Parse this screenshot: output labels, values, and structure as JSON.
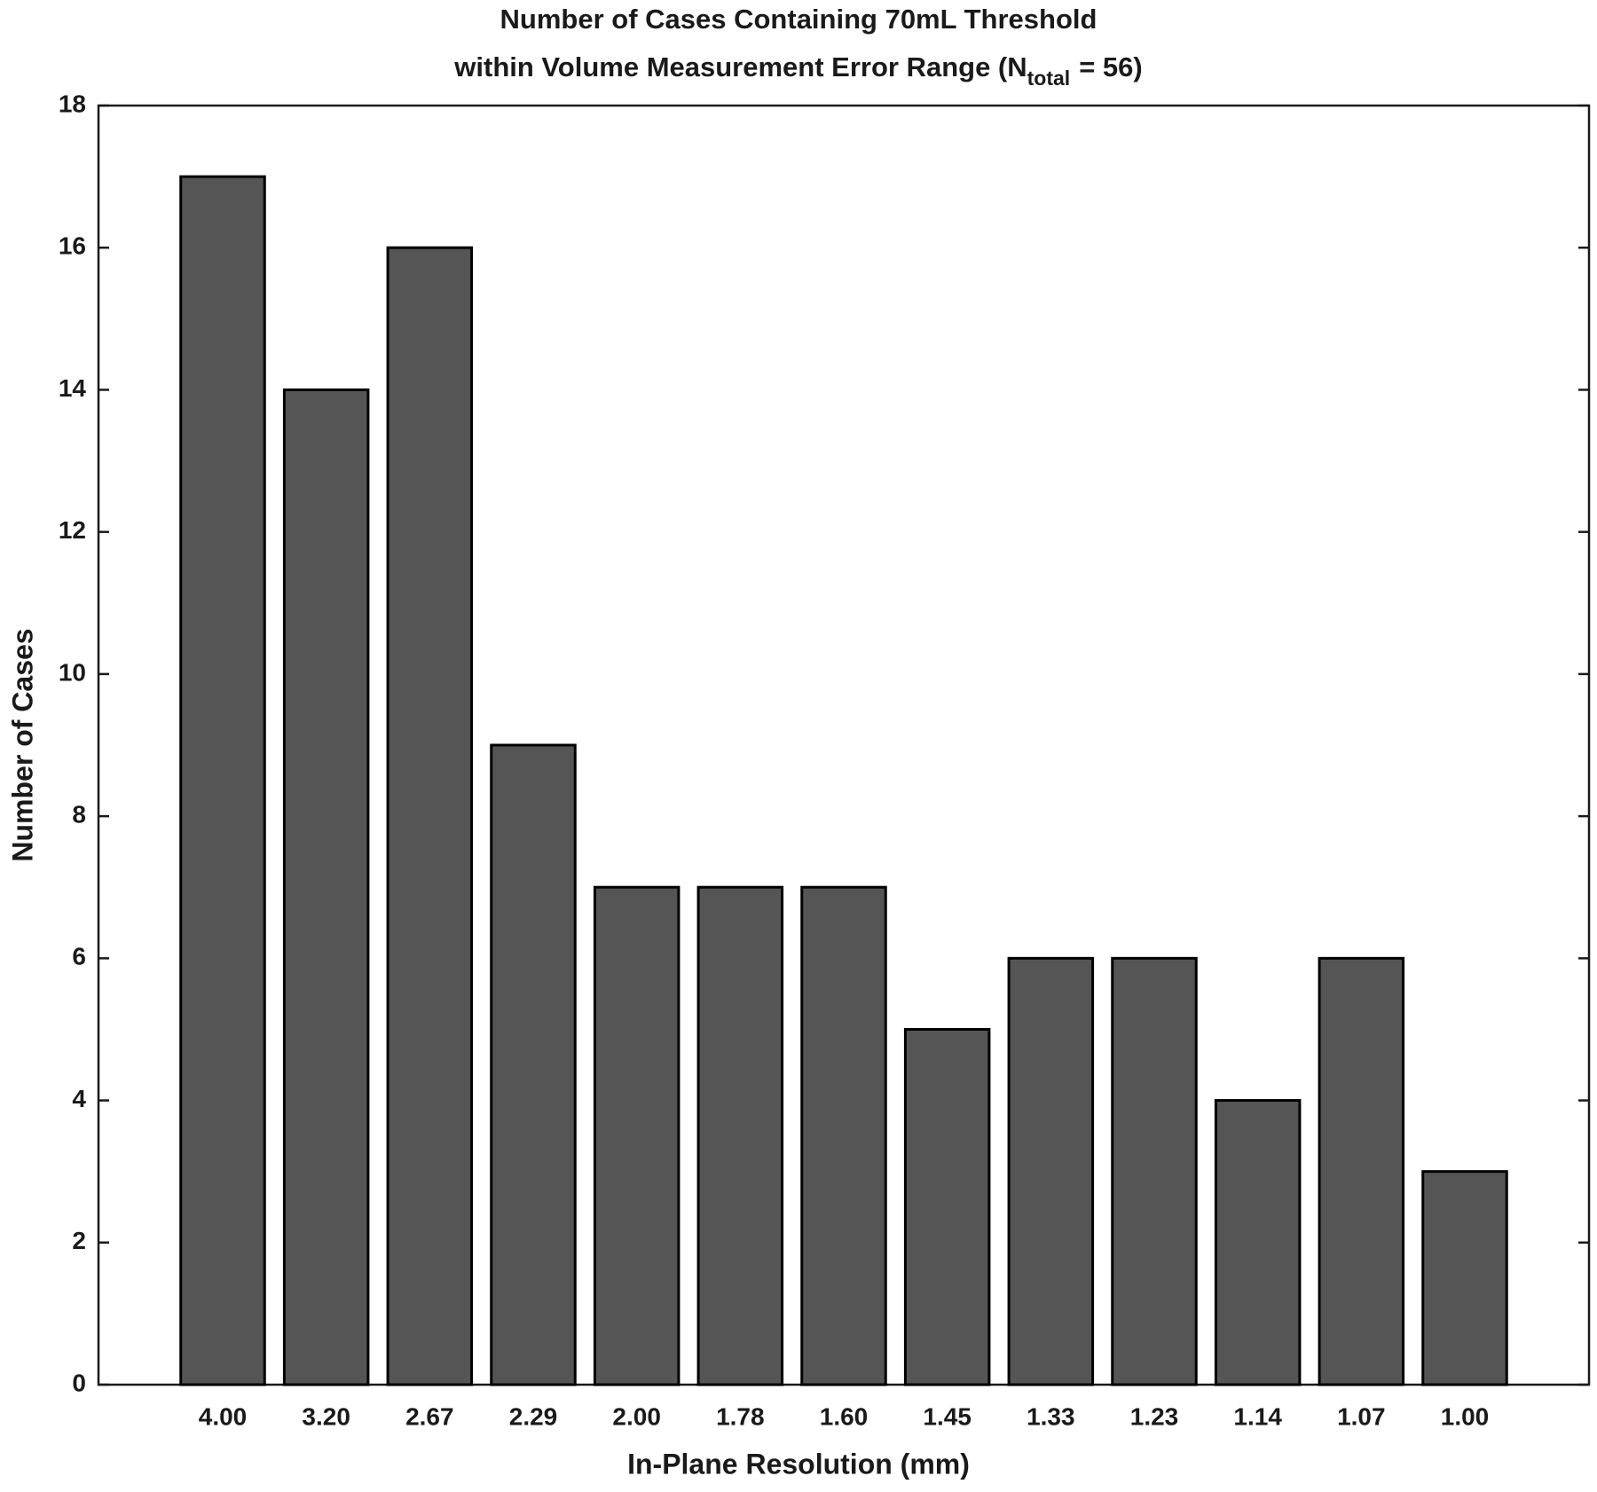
{
  "chart_data": {
    "type": "bar",
    "title": [
      "Number of Cases Containing 70mL Threshold",
      "within Volume Measurement Error Range (N",
      "total",
      "= 56)"
    ],
    "xlabel": "In-Plane Resolution (mm)",
    "ylabel": "Number of Cases",
    "categories": [
      "4.00",
      "3.20",
      "2.67",
      "2.29",
      "2.00",
      "1.78",
      "1.60",
      "1.45",
      "1.33",
      "1.23",
      "1.14",
      "1.07",
      "1.00"
    ],
    "values": [
      17,
      14,
      16,
      9,
      7,
      7,
      7,
      5,
      6,
      6,
      4,
      6,
      3
    ],
    "color": "#555555",
    "ylim": [
      0,
      18
    ],
    "yticks": [
      0,
      2,
      4,
      6,
      8,
      10,
      12,
      14,
      16,
      18
    ]
  }
}
